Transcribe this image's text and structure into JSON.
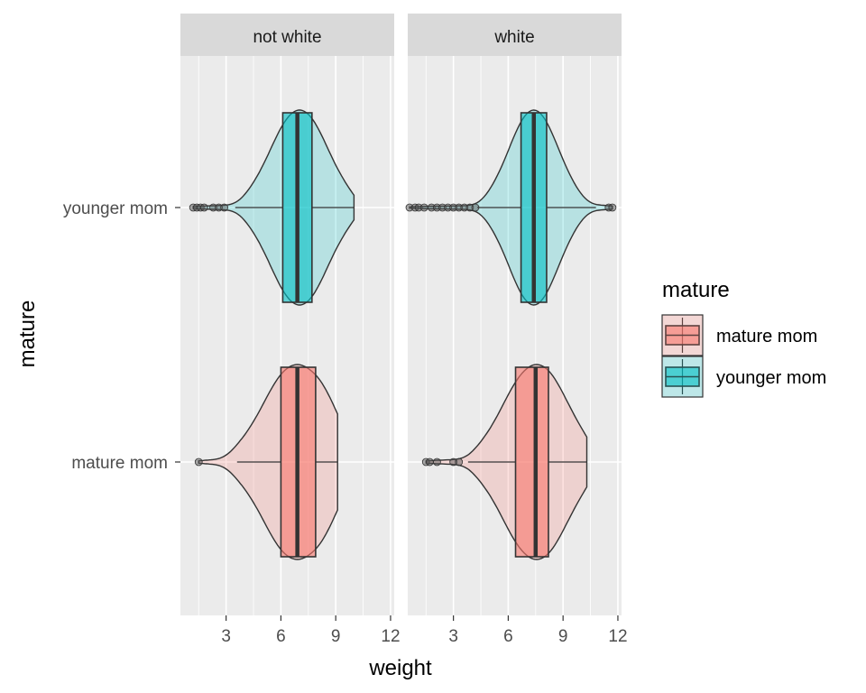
{
  "chart_data": {
    "type": "violin+box",
    "xlabel": "weight",
    "ylabel": "mature",
    "xlim": [
      0.5,
      12.2
    ],
    "xticks": [
      3,
      6,
      9,
      12
    ],
    "categories": [
      "younger mom",
      "mature mom"
    ],
    "legend": {
      "title": "mature",
      "position": "right",
      "entries": [
        {
          "label": "mature mom",
          "color": "#F8766D"
        },
        {
          "label": "younger mom",
          "color": "#00BFC4"
        }
      ]
    },
    "panels": [
      {
        "strip": "not white",
        "groups": [
          {
            "category": "younger mom",
            "color": "#00BFC4",
            "box": {
              "q1": 6.1,
              "median": 6.9,
              "q3": 7.7,
              "whisker_low": 3.5,
              "whisker_high": 10.0
            },
            "violin_max_density_at": 7.0,
            "range": [
              1.2,
              10.0
            ],
            "outliers": [
              1.2,
              1.4,
              1.6,
              1.8,
              2.3,
              2.6,
              2.9
            ]
          },
          {
            "category": "mature mom",
            "color": "#F8766D",
            "box": {
              "q1": 6.0,
              "median": 6.9,
              "q3": 7.9,
              "whisker_low": 3.6,
              "whisker_high": 9.1
            },
            "violin_max_density_at": 6.9,
            "range": [
              1.5,
              9.1
            ],
            "outliers": [
              1.5
            ]
          }
        ]
      },
      {
        "strip": "white",
        "groups": [
          {
            "category": "younger mom",
            "color": "#00BFC4",
            "box": {
              "q1": 6.7,
              "median": 7.4,
              "q3": 8.1,
              "whisker_low": 4.3,
              "whisker_high": 10.8
            },
            "violin_max_density_at": 7.4,
            "range": [
              0.6,
              11.7
            ],
            "outliers": [
              0.6,
              0.9,
              1.1,
              1.4,
              1.8,
              2.1,
              2.4,
              2.7,
              3.0,
              3.3,
              3.6,
              3.9,
              4.2,
              11.5,
              11.7
            ]
          },
          {
            "category": "mature mom",
            "color": "#F8766D",
            "box": {
              "q1": 6.4,
              "median": 7.5,
              "q3": 8.2,
              "whisker_low": 3.8,
              "whisker_high": 10.3
            },
            "violin_max_density_at": 7.5,
            "range": [
              1.5,
              10.3
            ],
            "outliers": [
              1.5,
              1.7,
              2.1,
              3.0,
              3.3
            ]
          }
        ]
      }
    ]
  }
}
